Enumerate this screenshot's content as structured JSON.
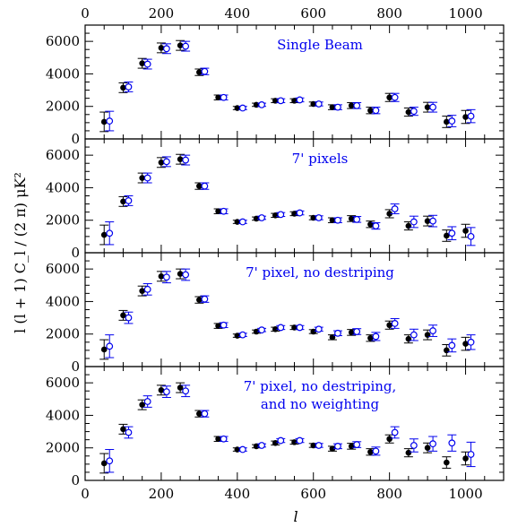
{
  "chart_data": {
    "type": "scatter",
    "xlabel": "l",
    "ylabel": "l (l + 1) C_l / (2 π)  μK²",
    "xlim": [
      0,
      1100
    ],
    "ylim": [
      0,
      7000
    ],
    "x_ticks": [
      0,
      200,
      400,
      600,
      800,
      1000
    ],
    "y_ticks": [
      0,
      2000,
      4000,
      6000
    ],
    "grid": false,
    "colors": {
      "filled": "#000000",
      "open": "#0000ee",
      "label": "#0000ee",
      "axes": "#000000"
    },
    "panels": [
      {
        "label_lines": [
          "Single Beam"
        ],
        "x": [
          50,
          100,
          150,
          200,
          250,
          300,
          350,
          400,
          450,
          500,
          550,
          600,
          650,
          700,
          750,
          800,
          850,
          900,
          950,
          1000
        ],
        "series": [
          {
            "marker": "filled",
            "values": [
              1050,
              3150,
              4650,
              5600,
              5750,
              4100,
              2550,
              1900,
              2100,
              2350,
              2350,
              2150,
              1950,
              2050,
              1750,
              2550,
              1650,
              1950,
              1050,
              1350
            ],
            "errors": [
              600,
              300,
              300,
              300,
              300,
              200,
              150,
              100,
              100,
              120,
              120,
              120,
              150,
              180,
              200,
              250,
              250,
              300,
              350,
              400
            ]
          },
          {
            "marker": "open",
            "values": [
              1100,
              3200,
              4600,
              5550,
              5700,
              4150,
              2550,
              1900,
              2100,
              2350,
              2400,
              2150,
              1950,
              2050,
              1750,
              2550,
              1700,
              1950,
              1100,
              1400
            ],
            "errors": [
              600,
              300,
              300,
              300,
              300,
              200,
              150,
              100,
              100,
              120,
              120,
              120,
              150,
              180,
              200,
              250,
              250,
              300,
              350,
              400
            ]
          }
        ]
      },
      {
        "label_lines": [
          "7' pixels"
        ],
        "x": [
          50,
          100,
          150,
          200,
          250,
          300,
          350,
          400,
          450,
          500,
          550,
          600,
          650,
          700,
          750,
          800,
          850,
          900,
          950,
          1000
        ],
        "series": [
          {
            "marker": "filled",
            "values": [
              1100,
              3150,
              4600,
              5550,
              5750,
              4100,
              2550,
              1900,
              2100,
              2300,
              2400,
              2150,
              2000,
              2100,
              1750,
              2400,
              1650,
              1950,
              1050,
              1350
            ],
            "errors": [
              600,
              300,
              300,
              300,
              300,
              200,
              150,
              100,
              100,
              120,
              120,
              120,
              150,
              180,
              200,
              250,
              250,
              300,
              350,
              400
            ]
          },
          {
            "marker": "open",
            "values": [
              1200,
              3200,
              4600,
              5600,
              5700,
              4100,
              2550,
              1900,
              2150,
              2350,
              2450,
              2150,
              2000,
              2050,
              1650,
              2700,
              1900,
              1950,
              1200,
              1000
            ],
            "errors": [
              700,
              300,
              300,
              300,
              300,
              200,
              150,
              100,
              100,
              120,
              120,
              120,
              150,
              180,
              200,
              300,
              350,
              350,
              400,
              550
            ]
          }
        ]
      },
      {
        "label_lines": [
          "7' pixel, no destriping"
        ],
        "x": [
          50,
          100,
          150,
          200,
          250,
          300,
          350,
          400,
          450,
          500,
          550,
          600,
          650,
          700,
          750,
          800,
          850,
          900,
          950,
          1000
        ],
        "series": [
          {
            "marker": "filled",
            "values": [
              1050,
              3150,
              4650,
              5550,
              5700,
              4100,
              2500,
              1900,
              2150,
              2300,
              2400,
              2150,
              1800,
              2100,
              1750,
              2550,
              1700,
              1950,
              1000,
              1400
            ],
            "errors": [
              600,
              300,
              300,
              300,
              300,
              200,
              150,
              100,
              100,
              120,
              120,
              120,
              150,
              180,
              200,
              250,
              250,
              300,
              350,
              400
            ]
          },
          {
            "marker": "open",
            "values": [
              1250,
              3000,
              4750,
              5500,
              5650,
              4150,
              2550,
              1950,
              2250,
              2400,
              2400,
              2300,
              2050,
              2150,
              1850,
              2650,
              1950,
              2200,
              1300,
              1500
            ],
            "errors": [
              700,
              350,
              350,
              350,
              350,
              200,
              150,
              100,
              100,
              120,
              120,
              120,
              150,
              180,
              250,
              300,
              350,
              350,
              400,
              450
            ]
          }
        ]
      },
      {
        "label_lines": [
          "7' pixel, no destriping,",
          "and no weighting"
        ],
        "x": [
          50,
          100,
          150,
          200,
          250,
          300,
          350,
          400,
          450,
          500,
          550,
          600,
          650,
          700,
          750,
          800,
          850,
          900,
          950,
          1000
        ],
        "series": [
          {
            "marker": "filled",
            "values": [
              1050,
              3150,
              4650,
              5550,
              5700,
              4100,
              2550,
              1900,
              2100,
              2300,
              2350,
              2150,
              1950,
              2100,
              1750,
              2550,
              1700,
              2000,
              1100,
              1350
            ],
            "errors": [
              600,
              300,
              300,
              300,
              300,
              200,
              150,
              100,
              100,
              120,
              120,
              120,
              150,
              180,
              200,
              250,
              250,
              300,
              350,
              400
            ]
          },
          {
            "marker": "open",
            "values": [
              1200,
              2950,
              4850,
              5450,
              5500,
              4100,
              2550,
              1900,
              2150,
              2450,
              2450,
              2150,
              2100,
              2200,
              1800,
              2950,
              2150,
              2250,
              2300,
              1600
            ],
            "errors": [
              700,
              350,
              350,
              350,
              350,
              200,
              150,
              100,
              100,
              120,
              120,
              120,
              150,
              180,
              250,
              350,
              400,
              450,
              500,
              750
            ]
          }
        ]
      }
    ]
  }
}
